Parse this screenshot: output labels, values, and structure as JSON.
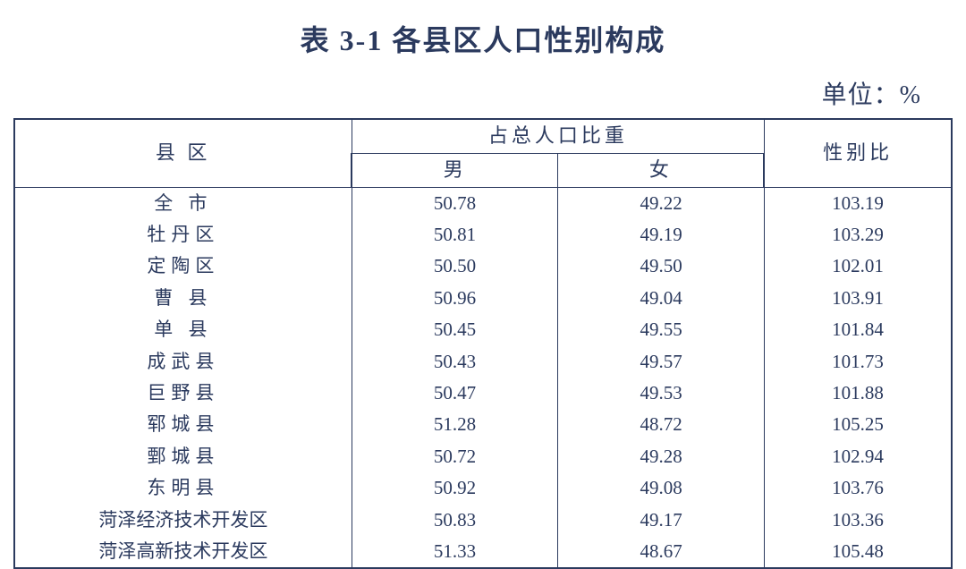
{
  "title": "表 3-1 各县区人口性别构成",
  "unit_label": "单位：%",
  "table": {
    "header": {
      "region": "县  区",
      "proportion_group": "占总人口比重",
      "male": "男",
      "female": "女",
      "ratio": "性别比"
    },
    "rows": [
      {
        "region": "全 市",
        "male": "50.78",
        "female": "49.22",
        "ratio": "103.19"
      },
      {
        "region": "牡丹区",
        "male": "50.81",
        "female": "49.19",
        "ratio": "103.29"
      },
      {
        "region": "定陶区",
        "male": "50.50",
        "female": "49.50",
        "ratio": "102.01"
      },
      {
        "region": "曹 县",
        "male": "50.96",
        "female": "49.04",
        "ratio": "103.91"
      },
      {
        "region": "单 县",
        "male": "50.45",
        "female": "49.55",
        "ratio": "101.84"
      },
      {
        "region": "成武县",
        "male": "50.43",
        "female": "49.57",
        "ratio": "101.73"
      },
      {
        "region": "巨野县",
        "male": "50.47",
        "female": "49.53",
        "ratio": "101.88"
      },
      {
        "region": "郓城县",
        "male": "51.28",
        "female": "48.72",
        "ratio": "105.25"
      },
      {
        "region": "鄄城县",
        "male": "50.72",
        "female": "49.28",
        "ratio": "102.94"
      },
      {
        "region": "东明县",
        "male": "50.92",
        "female": "49.08",
        "ratio": "103.76"
      },
      {
        "region": "菏泽经济技术开发区",
        "male": "50.83",
        "female": "49.17",
        "ratio": "103.36"
      },
      {
        "region": "菏泽高新技术开发区",
        "male": "51.33",
        "female": "48.67",
        "ratio": "105.48"
      }
    ]
  },
  "styling": {
    "text_color": "#2b3a5e",
    "background_color": "#ffffff",
    "border_color": "#2b3a5e",
    "title_fontsize": 32,
    "unit_fontsize": 28,
    "header_fontsize": 22,
    "cell_fontsize": 21,
    "column_widths_pct": [
      36,
      22,
      22,
      20
    ]
  }
}
